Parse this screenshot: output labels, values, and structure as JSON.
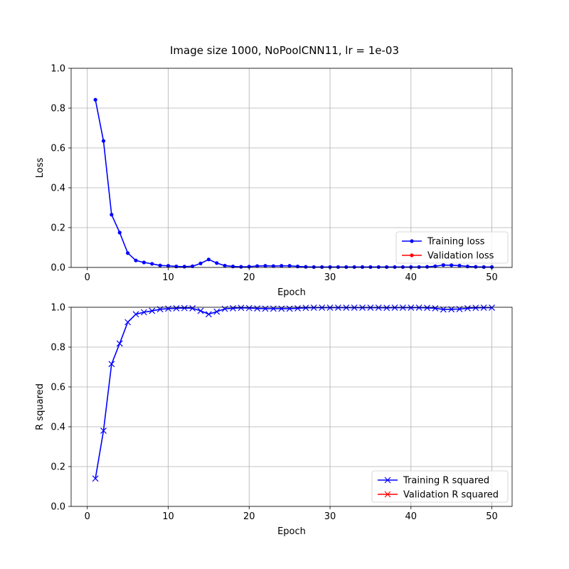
{
  "figure": {
    "title": "Image size 1000, NoPoolCNN11, lr = 1e-03"
  },
  "colors": {
    "training": "#0000ff",
    "validation": "#ff0000",
    "grid": "#b0b0b0",
    "axes": "#000000"
  },
  "chart_data": [
    {
      "type": "line",
      "title": "",
      "xlabel": "Epoch",
      "ylabel": "Loss",
      "xlim": [
        -2,
        52.5
      ],
      "ylim": [
        0,
        1
      ],
      "xticks": [
        0,
        10,
        20,
        30,
        40,
        50
      ],
      "yticks": [
        0.0,
        0.2,
        0.4,
        0.6,
        0.8,
        1.0
      ],
      "ytick_labels": [
        "0.0",
        "0.2",
        "0.4",
        "0.6",
        "0.8",
        "1.0"
      ],
      "grid": true,
      "legend_position": "lower-right",
      "series": [
        {
          "name": "Training loss",
          "marker": "dot",
          "x": [
            1,
            2,
            3,
            4,
            5,
            6,
            7,
            8,
            9,
            10,
            11,
            12,
            13,
            14,
            15,
            16,
            17,
            18,
            19,
            20,
            21,
            22,
            23,
            24,
            25,
            26,
            27,
            28,
            29,
            30,
            31,
            32,
            33,
            34,
            35,
            36,
            37,
            38,
            39,
            40,
            41,
            42,
            43,
            44,
            45,
            46,
            47,
            48,
            49,
            50
          ],
          "y": [
            0.842,
            0.635,
            0.265,
            0.175,
            0.072,
            0.035,
            0.025,
            0.018,
            0.01,
            0.008,
            0.005,
            0.004,
            0.006,
            0.02,
            0.04,
            0.022,
            0.009,
            0.005,
            0.003,
            0.004,
            0.007,
            0.008,
            0.007,
            0.008,
            0.008,
            0.005,
            0.003,
            0.002,
            0.002,
            0.002,
            0.002,
            0.002,
            0.002,
            0.002,
            0.002,
            0.002,
            0.002,
            0.002,
            0.002,
            0.002,
            0.002,
            0.003,
            0.006,
            0.012,
            0.011,
            0.009,
            0.005,
            0.003,
            0.002,
            0.002
          ]
        },
        {
          "name": "Validation loss",
          "marker": "dot",
          "x": [],
          "y": []
        }
      ]
    },
    {
      "type": "line",
      "title": "",
      "xlabel": "Epoch",
      "ylabel": "R squared",
      "xlim": [
        -2,
        52.5
      ],
      "ylim": [
        0,
        1
      ],
      "xticks": [
        0,
        10,
        20,
        30,
        40,
        50
      ],
      "yticks": [
        0.0,
        0.2,
        0.4,
        0.6,
        0.8,
        1.0
      ],
      "ytick_labels": [
        "0.0",
        "0.2",
        "0.4",
        "0.6",
        "0.8",
        "1.0"
      ],
      "grid": true,
      "legend_position": "lower-right",
      "series": [
        {
          "name": "Training R squared",
          "marker": "x",
          "x": [
            1,
            2,
            3,
            4,
            5,
            6,
            7,
            8,
            9,
            10,
            11,
            12,
            13,
            14,
            15,
            16,
            17,
            18,
            19,
            20,
            21,
            22,
            23,
            24,
            25,
            26,
            27,
            28,
            29,
            30,
            31,
            32,
            33,
            34,
            35,
            36,
            37,
            38,
            39,
            40,
            41,
            42,
            43,
            44,
            45,
            46,
            47,
            48,
            49,
            50
          ],
          "y": [
            0.14,
            0.38,
            0.715,
            0.818,
            0.925,
            0.965,
            0.975,
            0.982,
            0.99,
            0.993,
            0.995,
            0.996,
            0.995,
            0.982,
            0.965,
            0.978,
            0.992,
            0.995,
            0.997,
            0.996,
            0.994,
            0.993,
            0.993,
            0.993,
            0.993,
            0.995,
            0.997,
            0.998,
            0.998,
            0.998,
            0.998,
            0.998,
            0.998,
            0.998,
            0.998,
            0.998,
            0.997,
            0.998,
            0.998,
            0.998,
            0.998,
            0.997,
            0.995,
            0.989,
            0.99,
            0.991,
            0.995,
            0.997,
            0.998,
            0.998
          ]
        },
        {
          "name": "Validation R squared",
          "marker": "x",
          "x": [],
          "y": []
        }
      ]
    }
  ]
}
